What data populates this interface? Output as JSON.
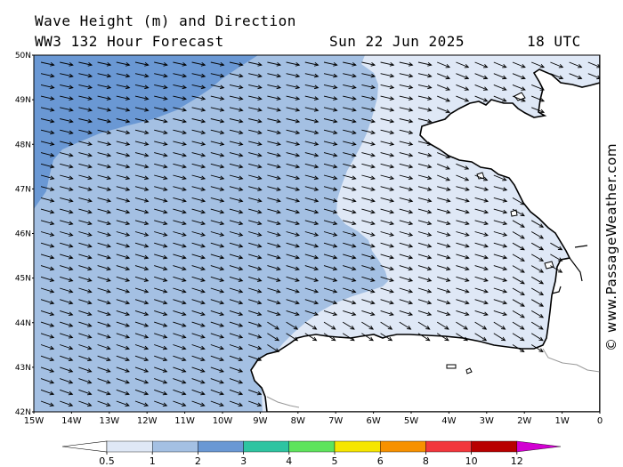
{
  "header": {
    "title_line1": "Wave Height (m) and Direction",
    "title_line2": "WW3 132 Hour Forecast",
    "date": "Sun 22 Jun 2025",
    "time": "18 UTC"
  },
  "map": {
    "lat_labels": [
      "50N",
      "49N",
      "48N",
      "47N",
      "46N",
      "45N",
      "44N",
      "43N",
      "42N"
    ],
    "lon_labels": [
      "15W",
      "14W",
      "13W",
      "12W",
      "11W",
      "10W",
      "9W",
      "8W",
      "7W",
      "6W",
      "5W",
      "4W",
      "3W",
      "2W",
      "1W",
      "0"
    ],
    "lat_range": [
      42,
      50
    ],
    "lon_range": [
      -15,
      0
    ],
    "wave_direction_towards": "east-southeast",
    "colorbar": {
      "labels": [
        "0.5",
        "1",
        "2",
        "3",
        "4",
        "5",
        "6",
        "8",
        "10",
        "12"
      ],
      "colors": [
        "#dfe8f6",
        "#a4c0e3",
        "#6a98d4",
        "#2ec4a1",
        "#5ee45c",
        "#f6e600",
        "#f79100",
        "#f2373c",
        "#b80000",
        "#d200d2"
      ]
    }
  },
  "credit": "© www.PassageWeather.com"
}
